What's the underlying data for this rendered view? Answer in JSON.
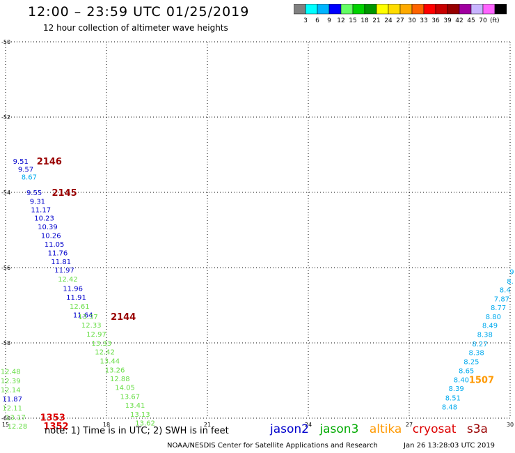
{
  "title": "12:00 – 23:59 UTC 01/25/2019",
  "subtitle": "12 hour collection of altimeter wave heights",
  "colorbar": {
    "unit": "(ft)",
    "labels": [
      "3",
      "6",
      "9",
      "12",
      "15",
      "18",
      "21",
      "24",
      "27",
      "30",
      "33",
      "36",
      "39",
      "42",
      "45",
      "70"
    ],
    "colors": [
      "#808080",
      "#00ffff",
      "#00b4ff",
      "#0000ff",
      "#64ff64",
      "#00d200",
      "#009600",
      "#ffff00",
      "#ffdc00",
      "#ffaa00",
      "#ff6400",
      "#ff0000",
      "#c80000",
      "#960000",
      "#a000a0",
      "#c8b4ff",
      "#ff64ff",
      "#000000"
    ]
  },
  "footer": {
    "note": "note:  1) Time is in UTC;  2) SWH is in feet",
    "credit": "NOAA/NESDIS Center for Satellite Applications and Research",
    "timestamp": "Jan 26 13:28:03 UTC 2019"
  },
  "satellites": [
    {
      "name": "jason2",
      "color": "#0000cc"
    },
    {
      "name": "jason3",
      "color": "#00aa00"
    },
    {
      "name": "altika",
      "color": "#ff9900"
    },
    {
      "name": "cryosat",
      "color": "#dd0000"
    },
    {
      "name": "s3a",
      "color": "#990000"
    }
  ],
  "chart_data": {
    "type": "scatter",
    "title": "12:00 – 23:59 UTC 01/25/2019",
    "subtitle": "12 hour collection of altimeter wave heights",
    "xlim": [
      15,
      30
    ],
    "ylim": [
      -60,
      -50
    ],
    "xticks": [
      15,
      18,
      21,
      24,
      27,
      30
    ],
    "yticks": [
      -50,
      -52,
      -54,
      -56,
      -58,
      -60
    ],
    "xticklabels": [
      "15",
      "18",
      "21",
      "24",
      "27",
      "30"
    ],
    "yticklabels": [
      "-50",
      "-52",
      "-54",
      "-56",
      "-58",
      "-60"
    ],
    "grid": true,
    "labels": [
      {
        "x": 15.45,
        "y": -53.17,
        "text": "9.51",
        "color": "#0000cc"
      },
      {
        "x": 15.6,
        "y": -53.38,
        "text": "9.57",
        "color": "#0000cc"
      },
      {
        "x": 15.7,
        "y": -53.58,
        "text": "8.67",
        "color": "#00aaee"
      },
      {
        "x": 15.85,
        "y": -54.0,
        "text": "9.55",
        "color": "#0000cc"
      },
      {
        "x": 15.95,
        "y": -54.23,
        "text": "9.31",
        "color": "#0000cc"
      },
      {
        "x": 16.05,
        "y": -54.45,
        "text": "11.17",
        "color": "#0000cc"
      },
      {
        "x": 16.15,
        "y": -54.68,
        "text": "10.23",
        "color": "#0000cc"
      },
      {
        "x": 16.25,
        "y": -54.91,
        "text": "10.39",
        "color": "#0000cc"
      },
      {
        "x": 16.35,
        "y": -55.14,
        "text": "10.26",
        "color": "#0000cc"
      },
      {
        "x": 16.45,
        "y": -55.37,
        "text": "11.05",
        "color": "#0000cc"
      },
      {
        "x": 16.55,
        "y": -55.6,
        "text": "11.76",
        "color": "#0000cc"
      },
      {
        "x": 16.65,
        "y": -55.83,
        "text": "11.81",
        "color": "#0000cc"
      },
      {
        "x": 16.75,
        "y": -56.06,
        "text": "11.97",
        "color": "#0000cc"
      },
      {
        "x": 16.85,
        "y": -56.3,
        "text": "12.42",
        "color": "#66dd44"
      },
      {
        "x": 17.0,
        "y": -56.55,
        "text": "11.96",
        "color": "#0000cc"
      },
      {
        "x": 17.1,
        "y": -56.78,
        "text": "11.91",
        "color": "#0000cc"
      },
      {
        "x": 17.2,
        "y": -57.02,
        "text": "12.61",
        "color": "#66dd44"
      },
      {
        "x": 17.3,
        "y": -57.25,
        "text": "11.64",
        "color": "#0000cc"
      },
      {
        "x": 17.45,
        "y": -57.3,
        "text": "13.37",
        "color": "#66dd44"
      },
      {
        "x": 17.55,
        "y": -57.52,
        "text": "12.33",
        "color": "#66dd44"
      },
      {
        "x": 17.7,
        "y": -57.76,
        "text": "12.97",
        "color": "#66dd44"
      },
      {
        "x": 17.85,
        "y": -58.0,
        "text": "13.33",
        "color": "#66dd44"
      },
      {
        "x": 17.95,
        "y": -58.23,
        "text": "12.42",
        "color": "#66dd44"
      },
      {
        "x": 18.1,
        "y": -58.47,
        "text": "13.44",
        "color": "#66dd44"
      },
      {
        "x": 18.25,
        "y": -58.71,
        "text": "13.26",
        "color": "#66dd44"
      },
      {
        "x": 18.4,
        "y": -58.94,
        "text": "12.88",
        "color": "#66dd44"
      },
      {
        "x": 18.55,
        "y": -59.18,
        "text": "14.05",
        "color": "#66dd44"
      },
      {
        "x": 18.7,
        "y": -59.42,
        "text": "13.67",
        "color": "#66dd44"
      },
      {
        "x": 18.85,
        "y": -59.65,
        "text": "13.41",
        "color": "#66dd44"
      },
      {
        "x": 19.0,
        "y": -59.89,
        "text": "13.13",
        "color": "#66dd44"
      },
      {
        "x": 19.15,
        "y": -60.12,
        "text": "13.62",
        "color": "#66dd44"
      },
      {
        "x": 15.15,
        "y": -58.75,
        "text": "12.48",
        "color": "#66dd44"
      },
      {
        "x": 15.15,
        "y": -59.0,
        "text": "12.39",
        "color": "#66dd44"
      },
      {
        "x": 15.15,
        "y": -59.24,
        "text": "12.14",
        "color": "#66dd44"
      },
      {
        "x": 15.2,
        "y": -59.48,
        "text": "11.87",
        "color": "#0000cc"
      },
      {
        "x": 15.2,
        "y": -59.72,
        "text": "12.11",
        "color": "#66dd44"
      },
      {
        "x": 15.3,
        "y": -59.97,
        "text": "13.17",
        "color": "#66dd44"
      },
      {
        "x": 15.35,
        "y": -60.2,
        "text": "12.28",
        "color": "#66dd44"
      },
      {
        "x": 30.05,
        "y": -56.1,
        "text": "9",
        "color": "#00aaee"
      },
      {
        "x": 30.0,
        "y": -56.35,
        "text": "8.",
        "color": "#00aaee"
      },
      {
        "x": 29.85,
        "y": -56.58,
        "text": "8.4",
        "color": "#00aaee"
      },
      {
        "x": 29.75,
        "y": -56.82,
        "text": "7.87",
        "color": "#00aaee"
      },
      {
        "x": 29.65,
        "y": -57.06,
        "text": "8.77",
        "color": "#00aaee"
      },
      {
        "x": 29.5,
        "y": -57.3,
        "text": "8.80",
        "color": "#00aaee"
      },
      {
        "x": 29.4,
        "y": -57.53,
        "text": "8.49",
        "color": "#00aaee"
      },
      {
        "x": 29.25,
        "y": -57.77,
        "text": "8.38",
        "color": "#00aaee"
      },
      {
        "x": 29.1,
        "y": -58.02,
        "text": "8.27",
        "color": "#00aaee"
      },
      {
        "x": 29.0,
        "y": -58.25,
        "text": "8.38",
        "color": "#00aaee"
      },
      {
        "x": 28.85,
        "y": -58.49,
        "text": "8.25",
        "color": "#00aaee"
      },
      {
        "x": 28.7,
        "y": -58.73,
        "text": "8.65",
        "color": "#00aaee"
      },
      {
        "x": 28.55,
        "y": -58.97,
        "text": "8.40",
        "color": "#00aaee"
      },
      {
        "x": 28.4,
        "y": -59.2,
        "text": "8.39",
        "color": "#00aaee"
      },
      {
        "x": 28.3,
        "y": -59.45,
        "text": "8.51",
        "color": "#00aaee"
      },
      {
        "x": 28.2,
        "y": -59.69,
        "text": "8.48",
        "color": "#00aaee"
      }
    ],
    "passes": [
      {
        "x": 16.3,
        "y": -53.17,
        "text": "2146",
        "color": "#990000"
      },
      {
        "x": 16.75,
        "y": -54.0,
        "text": "2145",
        "color": "#990000"
      },
      {
        "x": 18.5,
        "y": -57.3,
        "text": "2144",
        "color": "#990000"
      },
      {
        "x": 16.4,
        "y": -59.97,
        "text": "1353",
        "color": "#dd0000"
      },
      {
        "x": 16.5,
        "y": -60.2,
        "text": "1352",
        "color": "#dd0000"
      },
      {
        "x": 29.15,
        "y": -58.97,
        "text": "1507",
        "color": "#ff9900"
      }
    ]
  }
}
